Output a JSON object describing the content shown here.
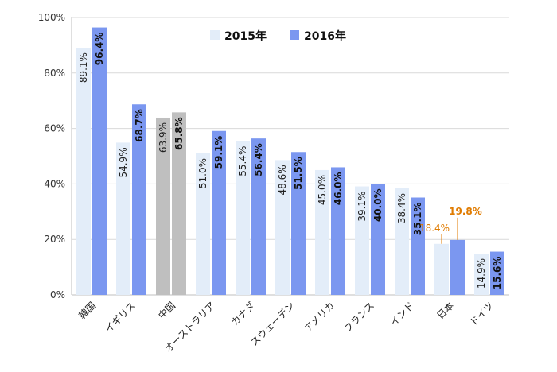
{
  "chart_data": {
    "type": "bar",
    "categories": [
      "韓国",
      "イギリス",
      "中国",
      "オーストラリア",
      "カナダ",
      "スウェーデン",
      "アメリカ",
      "フランス",
      "インド",
      "日本",
      "ドイツ"
    ],
    "series": [
      {
        "name": "2015年",
        "values": [
          89.1,
          54.9,
          63.9,
          51.0,
          55.4,
          48.6,
          45.0,
          39.1,
          38.4,
          18.4,
          14.9
        ],
        "labels": [
          "89.1%",
          "54.9%",
          "63.9%",
          "51.0%",
          "55.4%",
          "48.6%",
          "45.0%",
          "39.1%",
          "38.4%",
          "18.4%",
          "14.9%"
        ]
      },
      {
        "name": "2016年",
        "values": [
          96.4,
          68.7,
          65.8,
          59.1,
          56.4,
          51.5,
          46.0,
          40.0,
          35.1,
          19.8,
          15.6
        ],
        "labels": [
          "96.4%",
          "68.7%",
          "65.8%",
          "59.1%",
          "56.4%",
          "51.5%",
          "46.0%",
          "40.0%",
          "35.1%",
          "19.8%",
          "15.6%"
        ]
      }
    ],
    "ylim": [
      0,
      100
    ],
    "yticks": [
      "0%",
      "20%",
      "40%",
      "60%",
      "80%",
      "100%"
    ],
    "legend_position": "top-center",
    "grid": true,
    "colors": {
      "s2015": "#e3edf9",
      "s2016": "#7b97f0",
      "highlight_2015": "#bfbfbf",
      "highlight_2016": "#bfbfbf",
      "grid": "#d9d9d9",
      "annotation": "#e07b00"
    },
    "highlight_gray_category": "中国",
    "highlight_orange_category": "日本"
  }
}
